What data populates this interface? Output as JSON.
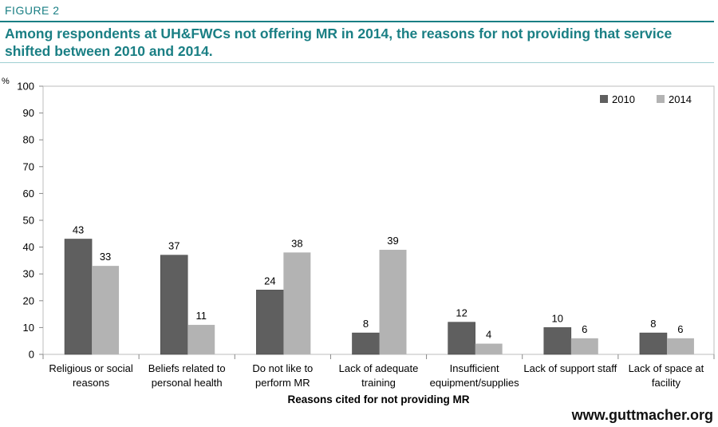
{
  "figure_label": "FIGURE 2",
  "title": "Among respondents at UH&FWCs not offering MR in 2014, the reasons for not providing that service shifted between 2010 and 2014.",
  "footer": "www.guttmacher.org",
  "colors": {
    "accent": "#1a7f84",
    "series_2010": "#5f5f5f",
    "series_2014": "#b3b3b3"
  },
  "chart_data": {
    "type": "bar",
    "title": "",
    "xlabel": "Reasons cited for not providing MR",
    "ylabel": "%",
    "ylim": [
      0,
      100
    ],
    "yticks": [
      0,
      10,
      20,
      30,
      40,
      50,
      60,
      70,
      80,
      90,
      100
    ],
    "grid": false,
    "legend_position": "top-right",
    "categories": [
      [
        "Religious or social",
        "reasons"
      ],
      [
        "Beliefs related to",
        "personal health"
      ],
      [
        "Do not like to",
        "perform MR"
      ],
      [
        "Lack of adequate",
        "training"
      ],
      [
        "Insufficient",
        "equipment/supplies"
      ],
      [
        "Lack of support staff"
      ],
      [
        "Lack of space at",
        "facility"
      ]
    ],
    "series": [
      {
        "name": "2010",
        "values": [
          43,
          37,
          24,
          8,
          12,
          10,
          8
        ]
      },
      {
        "name": "2014",
        "values": [
          33,
          11,
          38,
          39,
          4,
          6,
          6
        ]
      }
    ]
  }
}
